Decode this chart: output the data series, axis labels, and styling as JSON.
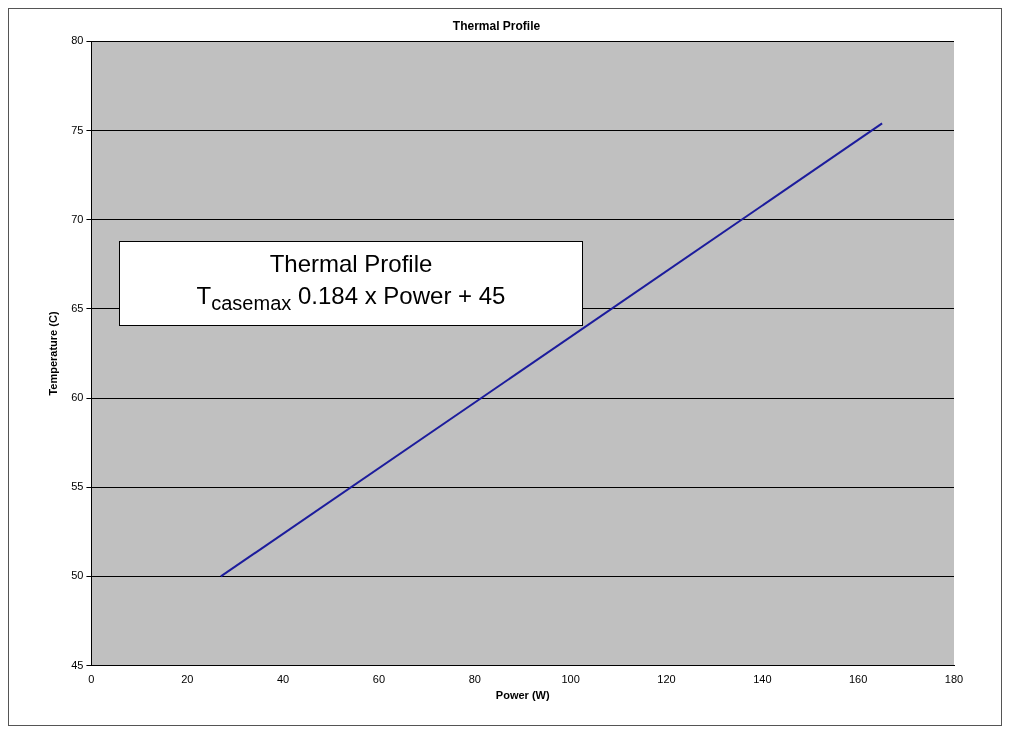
{
  "chart_data": {
    "type": "line",
    "title": "Thermal Profile",
    "xlabel": "Power (W)",
    "ylabel": "Temperature (C)",
    "annotations": [
      "Thermal Profile",
      "T$_{casemax}$  0.184  x Power + 45"
    ],
    "series": [
      {
        "color": "#1c1c9c",
        "x": [
          27,
          165
        ],
        "values": [
          50,
          75.4
        ]
      }
    ],
    "xlim": [
      0,
      180
    ],
    "xticks": [
      0,
      20,
      40,
      60,
      80,
      100,
      120,
      140,
      160,
      180
    ],
    "ylim": [
      45,
      80
    ],
    "yticks": [
      45,
      50,
      55,
      60,
      65,
      70,
      75,
      80
    ],
    "grid": "y",
    "legend": false,
    "marker": "none",
    "line_style": "solid"
  }
}
